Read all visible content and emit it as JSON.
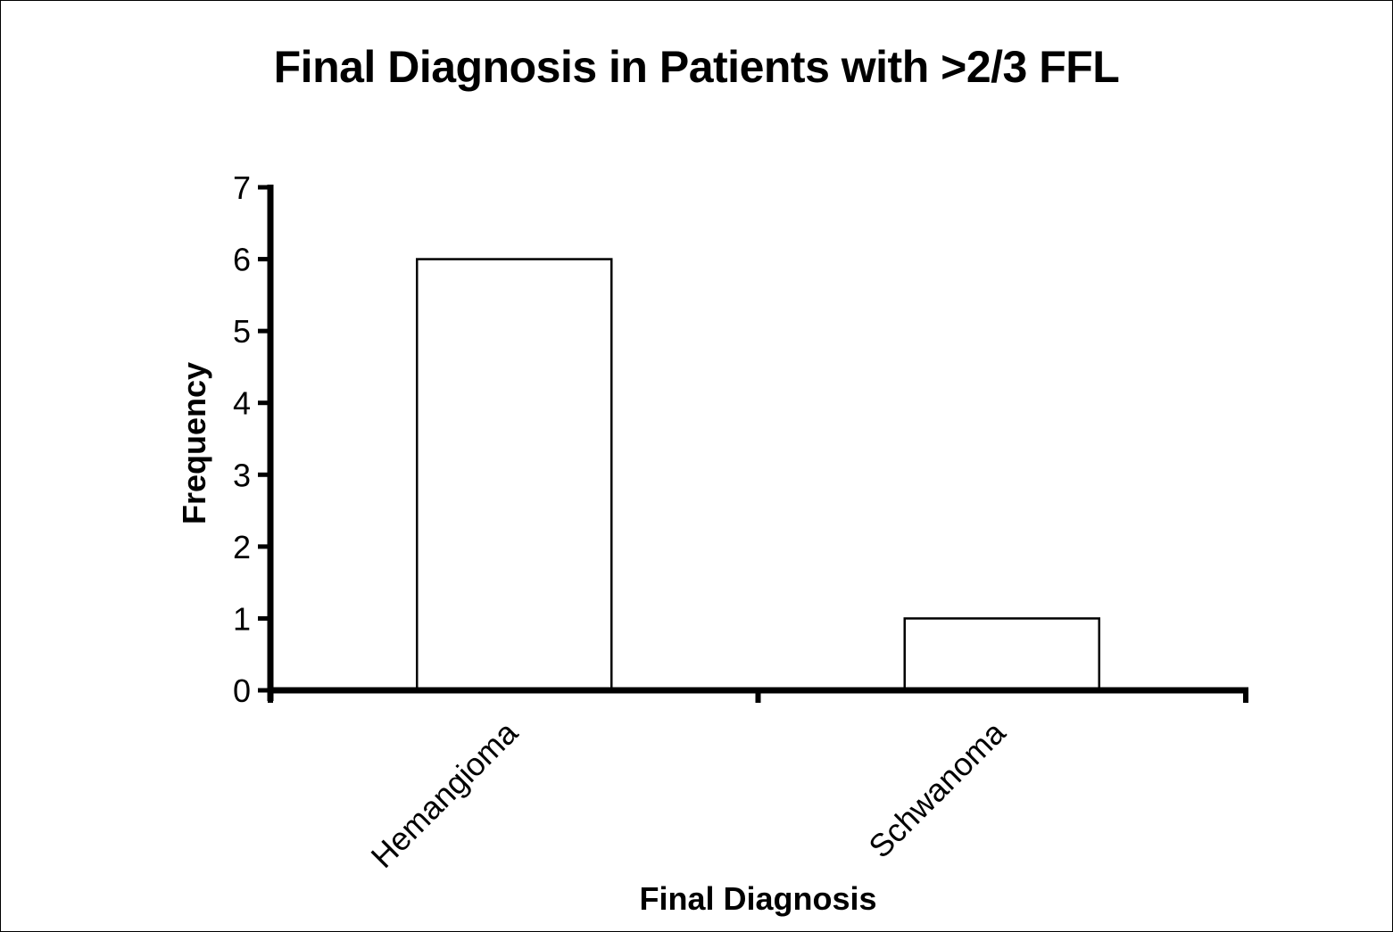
{
  "chart_data": {
    "type": "bar",
    "title": "Final Diagnosis in Patients with >2/3 FFL",
    "xlabel": "Final Diagnosis",
    "ylabel": "Frequency",
    "categories": [
      "Hemangioma",
      "Schwanoma"
    ],
    "values": [
      6,
      1
    ],
    "ylim": [
      0,
      7
    ],
    "yticks": [
      0,
      1,
      2,
      3,
      4,
      5,
      6,
      7
    ],
    "grid": false,
    "legend": "none",
    "bar_fill": "#ffffff",
    "bar_stroke": "#000000",
    "axis_color": "#000000"
  }
}
